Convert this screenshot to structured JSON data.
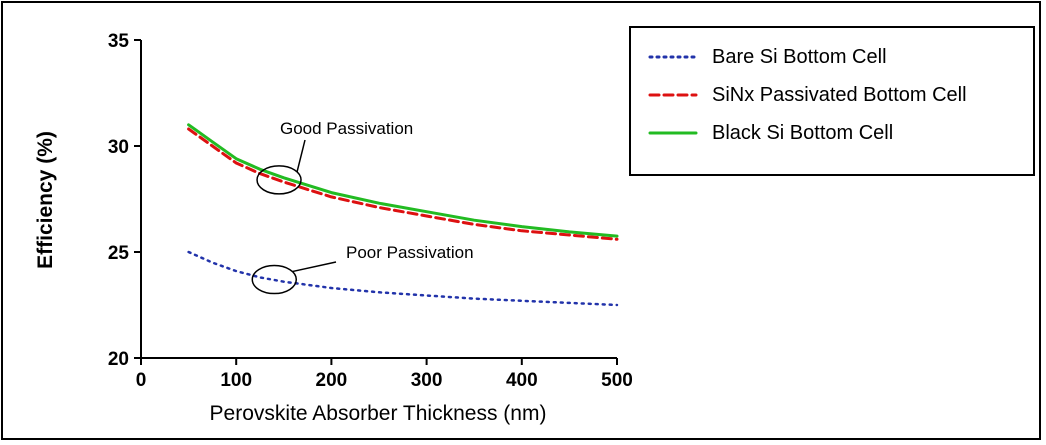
{
  "chart_data": {
    "type": "line",
    "xlabel": "Perovskite Absorber Thickness (nm)",
    "ylabel": "Efficiency (%)",
    "xlim": [
      0,
      500
    ],
    "ylim": [
      20,
      35
    ],
    "xticks": [
      0,
      100,
      200,
      300,
      400,
      500
    ],
    "yticks": [
      20,
      25,
      30,
      35
    ],
    "grid": false,
    "legend_position": "top-right",
    "x": [
      50,
      75,
      100,
      125,
      150,
      200,
      250,
      300,
      350,
      400,
      450,
      500
    ],
    "series": [
      {
        "name": "Bare Si Bottom Cell",
        "style": "dotted",
        "color": "#2233aa",
        "values": [
          25.0,
          24.5,
          24.1,
          23.8,
          23.6,
          23.3,
          23.1,
          22.95,
          22.8,
          22.7,
          22.6,
          22.5
        ]
      },
      {
        "name": "SiNx Passivated Bottom Cell",
        "style": "dashed",
        "color": "#dd1111",
        "values": [
          30.8,
          30.0,
          29.2,
          28.7,
          28.3,
          27.6,
          27.1,
          26.7,
          26.3,
          26.0,
          25.8,
          25.6
        ]
      },
      {
        "name": "Black Si Bottom Cell",
        "style": "solid",
        "color": "#22bb22",
        "values": [
          31.0,
          30.2,
          29.4,
          28.9,
          28.5,
          27.8,
          27.3,
          26.9,
          26.5,
          26.2,
          25.95,
          25.75
        ]
      }
    ],
    "annotations": [
      {
        "text": "Good Passivation",
        "target_x": 145,
        "target_y": 28.4
      },
      {
        "text": "Poor Passivation",
        "target_x": 140,
        "target_y": 23.7
      }
    ]
  }
}
